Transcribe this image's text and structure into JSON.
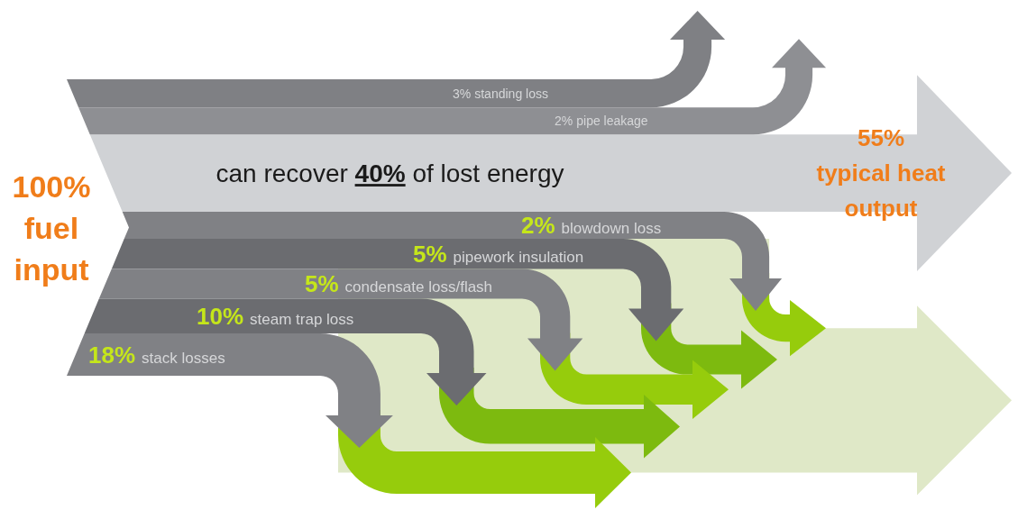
{
  "chart_data": {
    "type": "other",
    "categories": [
      "fuel input",
      "standing loss",
      "pipe leakage",
      "typical heat output",
      "blowdown loss",
      "pipework insulation",
      "condensate loss/flash",
      "steam trap loss",
      "stack losses"
    ],
    "values": [
      100,
      3,
      2,
      55,
      2,
      5,
      5,
      10,
      18
    ],
    "value_labels": [
      "100%",
      "3%",
      "2%",
      "55%",
      "2%",
      "5%",
      "5%",
      "10%",
      "18%"
    ],
    "annotations": [
      "can recover 40% of lost energy"
    ]
  }
}
